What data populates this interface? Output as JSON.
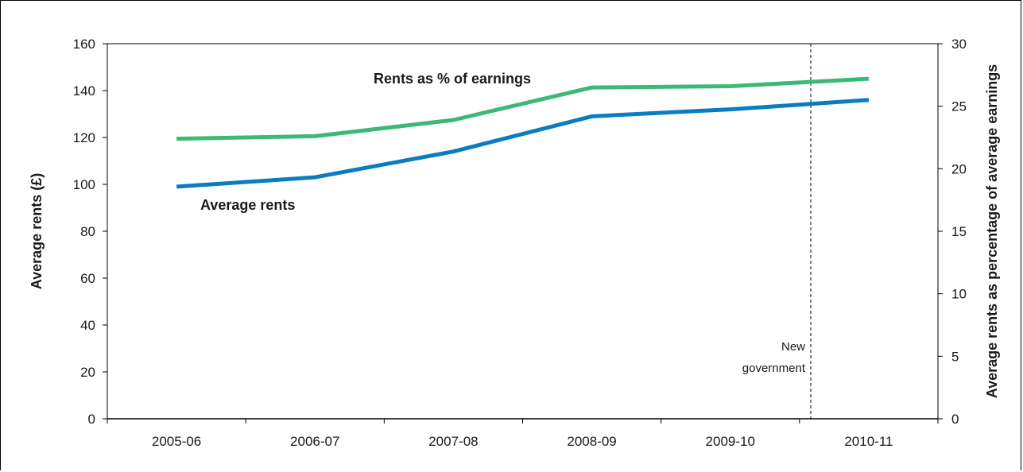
{
  "chart_data": {
    "type": "line",
    "categories": [
      "2005-06",
      "2006-07",
      "2007-08",
      "2008-09",
      "2009-10",
      "2010-11"
    ],
    "series": [
      {
        "name": "Rents as % of earnings",
        "axis": "right",
        "color": "#3cb878",
        "values": [
          22.4,
          22.6,
          23.9,
          26.5,
          26.6,
          27.2
        ]
      },
      {
        "name": "Average rents",
        "axis": "left",
        "color": "#0a7cc1",
        "values": [
          99,
          103,
          114,
          129,
          132,
          136
        ]
      }
    ],
    "ylabel_left": "Average rents (£)",
    "ylabel_right": "Average rents as percentage of average earnings",
    "ylim_left": [
      0,
      160
    ],
    "yticks_left": [
      0,
      20,
      40,
      60,
      80,
      100,
      120,
      140,
      160
    ],
    "ylim_right": [
      0,
      30
    ],
    "yticks_right": [
      0,
      5,
      10,
      15,
      20,
      25,
      30
    ],
    "grid": false,
    "legend": "inline labels",
    "annotations": [
      {
        "type": "vertical-dashed-line",
        "x_position": "between 2009-10 and 2010-11",
        "text": [
          "New",
          "government"
        ]
      }
    ]
  }
}
